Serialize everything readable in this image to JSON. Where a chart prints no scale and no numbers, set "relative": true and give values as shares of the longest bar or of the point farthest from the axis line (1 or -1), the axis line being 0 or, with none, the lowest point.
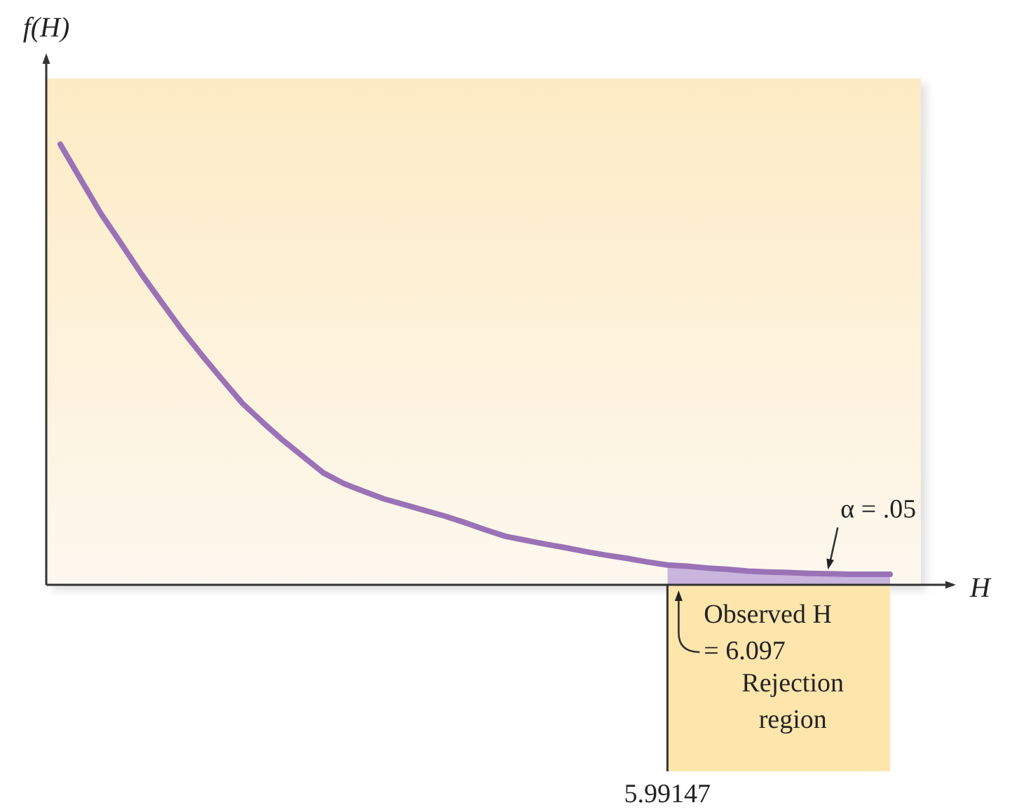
{
  "chart_data": {
    "type": "line",
    "relative": true,
    "xlabel": "H",
    "ylabel": "f(H)",
    "categories": [
      null,
      null,
      null,
      null,
      null,
      null,
      null,
      null,
      null,
      null,
      null,
      null,
      null,
      null,
      null,
      null,
      null,
      null,
      null,
      null,
      null,
      null,
      null,
      null,
      null,
      null,
      null,
      null,
      null,
      null,
      null,
      null,
      null,
      null,
      null,
      null,
      null,
      null,
      null,
      null,
      null,
      null
    ],
    "series": [
      {
        "color": "#9a72b6",
        "values": [
          1,
          0.921,
          0.843,
          0.775,
          0.706,
          0.642,
          0.579,
          0.521,
          0.466,
          0.412,
          0.369,
          0.328,
          0.291,
          0.254,
          0.23,
          0.212,
          0.195,
          0.182,
          0.169,
          0.156,
          0.141,
          0.125,
          0.11,
          0.101,
          0.092,
          0.084,
          0.075,
          0.067,
          0.06,
          0.052,
          0.045,
          0.042,
          0.038,
          0.035,
          0.031,
          0.029,
          0.028,
          0.026,
          0.025,
          0.024,
          0.024,
          0.024
        ]
      },
      {
        "type": "area",
        "color": "#c9b5dd",
        "values": [
          null,
          null,
          null,
          null,
          null,
          null,
          null,
          null,
          null,
          null,
          null,
          null,
          null,
          null,
          null,
          null,
          null,
          null,
          null,
          null,
          null,
          null,
          null,
          null,
          null,
          null,
          null,
          null,
          null,
          null,
          0.045,
          0.042,
          0.038,
          0.035,
          0.031,
          0.029,
          0.028,
          0.026,
          0.025,
          0.024,
          0.024,
          0.024
        ]
      }
    ],
    "annotations": [
      "α = .05",
      "Observed H = 6.097",
      "5.99147",
      "Rejection region"
    ],
    "marker": "none",
    "line_style": "solid"
  }
}
